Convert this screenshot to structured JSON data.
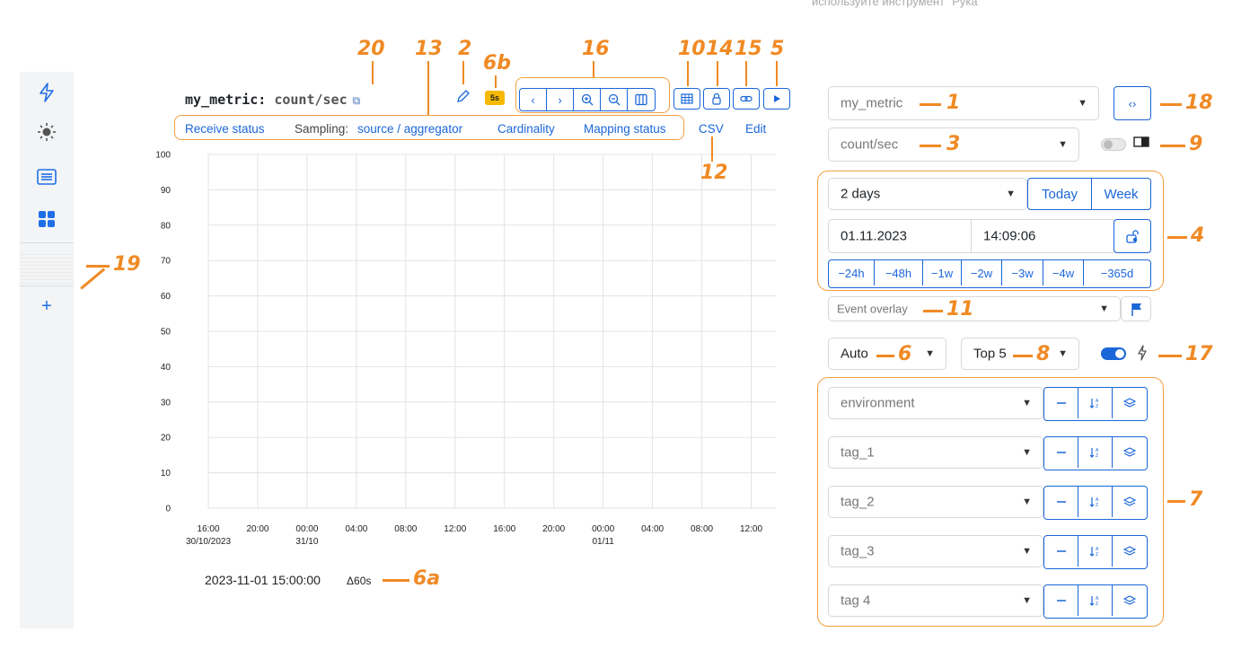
{
  "top_note": "используйте инструмент \"Рука\"",
  "metric": {
    "name": "my_metric",
    "separator": ":",
    "unit": "count/sec",
    "refresh_badge": "5s"
  },
  "header_links": {
    "receive_status": "Receive status",
    "sampling_label": "Sampling:",
    "sampling_value": "source / aggregator",
    "cardinality": "Cardinality",
    "mapping_status": "Mapping status",
    "csv": "CSV",
    "edit": "Edit"
  },
  "chart_data": {
    "type": "line",
    "series": [],
    "ylim": [
      0,
      100
    ],
    "y_ticks": [
      "0",
      "10",
      "20",
      "30",
      "40",
      "50",
      "60",
      "70",
      "80",
      "90",
      "100"
    ],
    "x_ticks": [
      {
        "label": "16:00",
        "sub": "30/10/2023"
      },
      {
        "label": "20:00",
        "sub": ""
      },
      {
        "label": "00:00",
        "sub": "31/10"
      },
      {
        "label": "04:00",
        "sub": ""
      },
      {
        "label": "08:00",
        "sub": ""
      },
      {
        "label": "12:00",
        "sub": ""
      },
      {
        "label": "16:00",
        "sub": ""
      },
      {
        "label": "20:00",
        "sub": ""
      },
      {
        "label": "00:00",
        "sub": "01/11"
      },
      {
        "label": "04:00",
        "sub": ""
      },
      {
        "label": "08:00",
        "sub": ""
      },
      {
        "label": "12:00",
        "sub": ""
      }
    ],
    "grid": true
  },
  "footer": {
    "time": "2023-11-01 15:00:00",
    "delta": "Δ60s"
  },
  "controls": {
    "metric_select": "my_metric",
    "unit_select": "count/sec",
    "range_select": "2 days",
    "today": "Today",
    "week": "Week",
    "date": "01.11.2023",
    "time": "14:09:06",
    "shifts": [
      "−24h",
      "−48h",
      "−1w",
      "−2w",
      "−3w",
      "−4w",
      "−365d"
    ],
    "event_overlay": "Event overlay",
    "resolution": "Auto",
    "top": "Top 5",
    "tags": [
      "environment",
      "tag_1",
      "tag_2",
      "tag_3",
      "tag 4"
    ]
  },
  "annotations": {
    "n1": "1",
    "n2": "2",
    "n3": "3",
    "n4": "4",
    "n5": "5",
    "n6": "6",
    "n6a": "6a",
    "n6b": "6b",
    "n7": "7",
    "n8": "8",
    "n9": "9",
    "n10": "10",
    "n11": "11",
    "n12": "12",
    "n13": "13",
    "n14": "14",
    "n15": "15",
    "n16": "16",
    "n17": "17",
    "n18": "18",
    "n19": "19",
    "n20": "20"
  },
  "colors": {
    "accent": "#1a66d9",
    "annotation": "#F08A24",
    "badge": "#f6b900"
  },
  "icons": [
    "lightning-icon",
    "sun-icon",
    "list-icon",
    "dashboard-icon",
    "plus-icon",
    "external-link-icon",
    "pencil-icon",
    "chevron-left-icon",
    "chevron-right-icon",
    "zoom-in-icon",
    "zoom-out-icon",
    "columns-icon",
    "table-icon",
    "lock-icon",
    "link-icon",
    "play-icon",
    "code-icon",
    "unlock-icon",
    "flag-icon",
    "minus-icon",
    "sort-icon",
    "layers-icon"
  ]
}
